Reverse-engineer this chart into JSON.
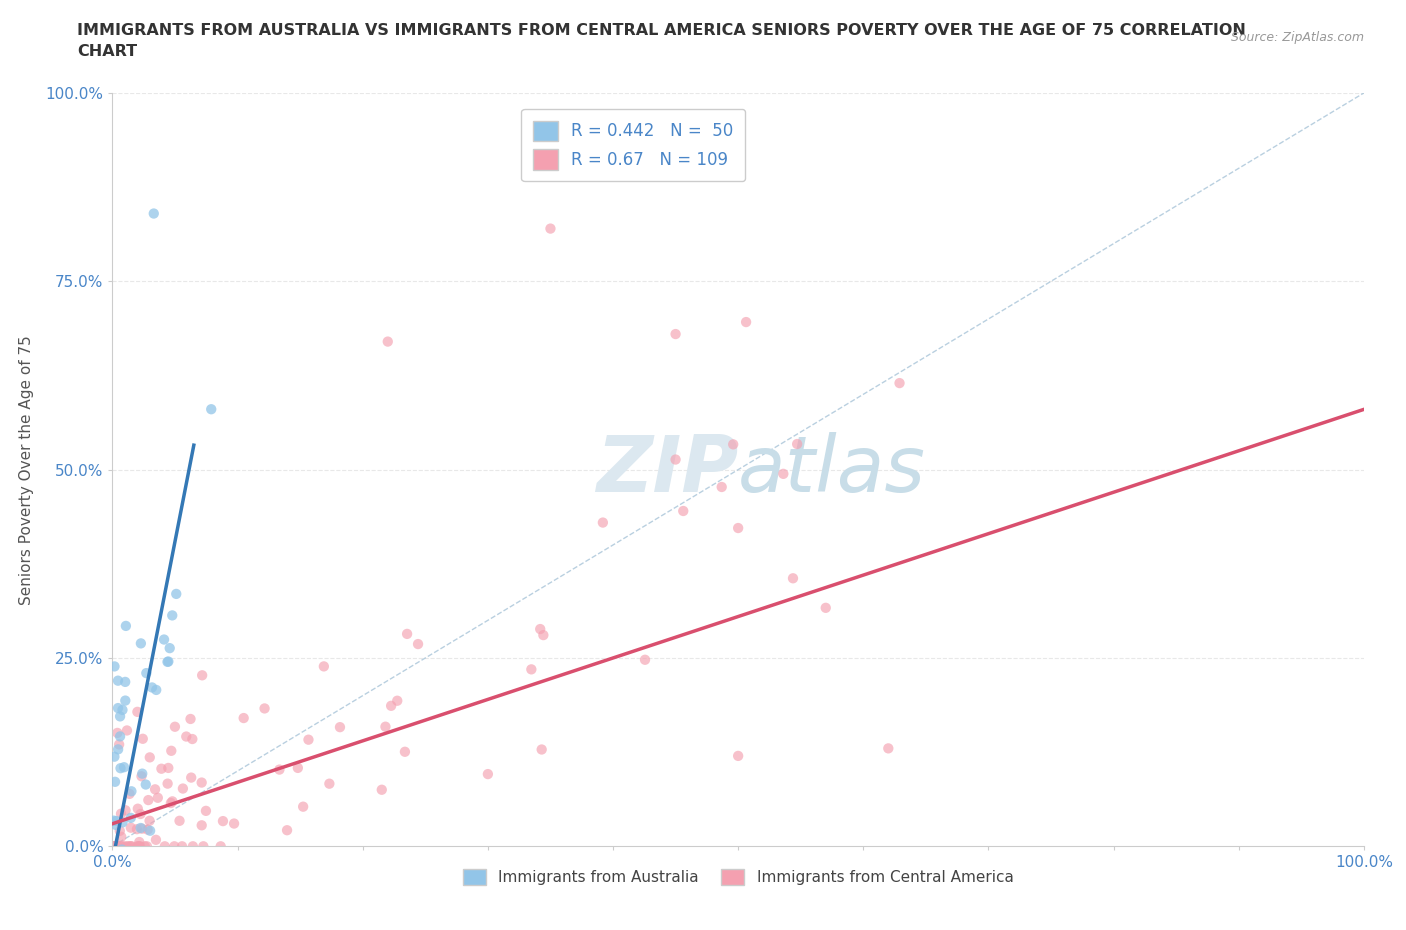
{
  "title_line1": "IMMIGRANTS FROM AUSTRALIA VS IMMIGRANTS FROM CENTRAL AMERICA SENIORS POVERTY OVER THE AGE OF 75 CORRELATION",
  "title_line2": "CHART",
  "source": "Source: ZipAtlas.com",
  "ylabel": "Seniors Poverty Over the Age of 75",
  "xlim": [
    0,
    1
  ],
  "ylim": [
    0,
    1
  ],
  "ytick_labels": [
    "0.0%",
    "25.0%",
    "50.0%",
    "75.0%",
    "100.0%"
  ],
  "ytick_values": [
    0,
    0.25,
    0.5,
    0.75,
    1.0
  ],
  "xtick_labels": [
    "0.0%",
    "",
    "",
    "",
    "",
    "",
    "",
    "",
    "",
    "",
    "100.0%"
  ],
  "legend_aus": "Immigrants from Australia",
  "legend_cam": "Immigrants from Central America",
  "R_aus": 0.442,
  "N_aus": 50,
  "R_cam": 0.67,
  "N_cam": 109,
  "color_aus": "#92c5e8",
  "color_cam": "#f4a0b0",
  "trend_aus": "#3478b5",
  "trend_cam": "#d94f6e",
  "diag_color": "#a8c4d8",
  "background": "#ffffff",
  "grid_color": "#e8e8e8",
  "text_color": "#4a86c8",
  "title_color": "#333333",
  "watermark_color": "#dce8f0"
}
